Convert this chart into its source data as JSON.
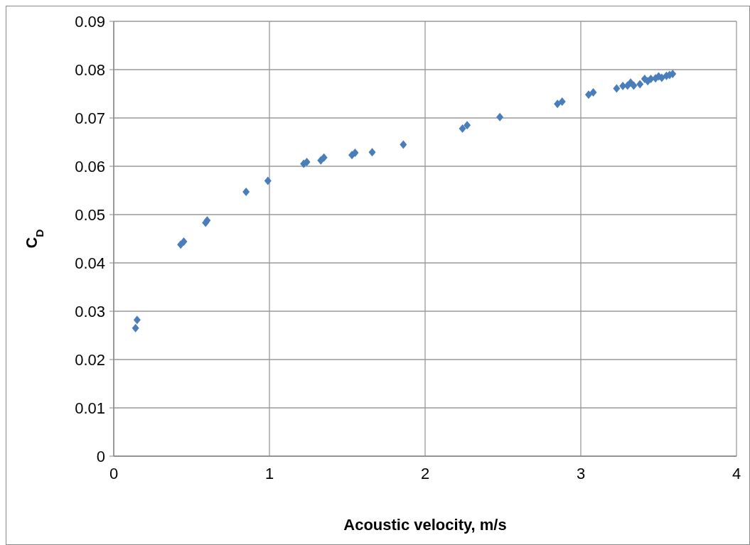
{
  "chart_data": {
    "type": "scatter",
    "xlabel": "Acoustic velocity, m/s",
    "ylabel": "C$_{D}$",
    "marker": "diamond",
    "grid": true,
    "xlim": [
      0,
      4
    ],
    "xticks": [
      0,
      1,
      2,
      3,
      4
    ],
    "ylim": [
      0,
      0.09
    ],
    "yticks": [
      0,
      0.01,
      0.02,
      0.03,
      0.04,
      0.05,
      0.06,
      0.07,
      0.08,
      0.09
    ],
    "series": [
      {
        "color": "#4a7ebb",
        "x": [
          0.14,
          0.15,
          0.43,
          0.45,
          0.59,
          0.6,
          0.85,
          0.99,
          1.22,
          1.24,
          1.33,
          1.35,
          1.53,
          1.55,
          1.66,
          1.86,
          2.24,
          2.27,
          2.48,
          2.85,
          2.88,
          3.05,
          3.08,
          3.23,
          3.27,
          3.3,
          3.32,
          3.34,
          3.38,
          3.41,
          3.43,
          3.45,
          3.48,
          3.5,
          3.52,
          3.55,
          3.57,
          3.59
        ],
        "values": [
          0.0265,
          0.0282,
          0.0438,
          0.0444,
          0.0483,
          0.0488,
          0.0547,
          0.057,
          0.0605,
          0.0609,
          0.0612,
          0.0618,
          0.0623,
          0.0628,
          0.0629,
          0.0645,
          0.0678,
          0.0685,
          0.0702,
          0.0729,
          0.0734,
          0.0748,
          0.0753,
          0.0761,
          0.0766,
          0.0767,
          0.0773,
          0.0767,
          0.077,
          0.0781,
          0.0776,
          0.0781,
          0.0782,
          0.0786,
          0.0783,
          0.0787,
          0.0789,
          0.0791
        ]
      }
    ]
  }
}
